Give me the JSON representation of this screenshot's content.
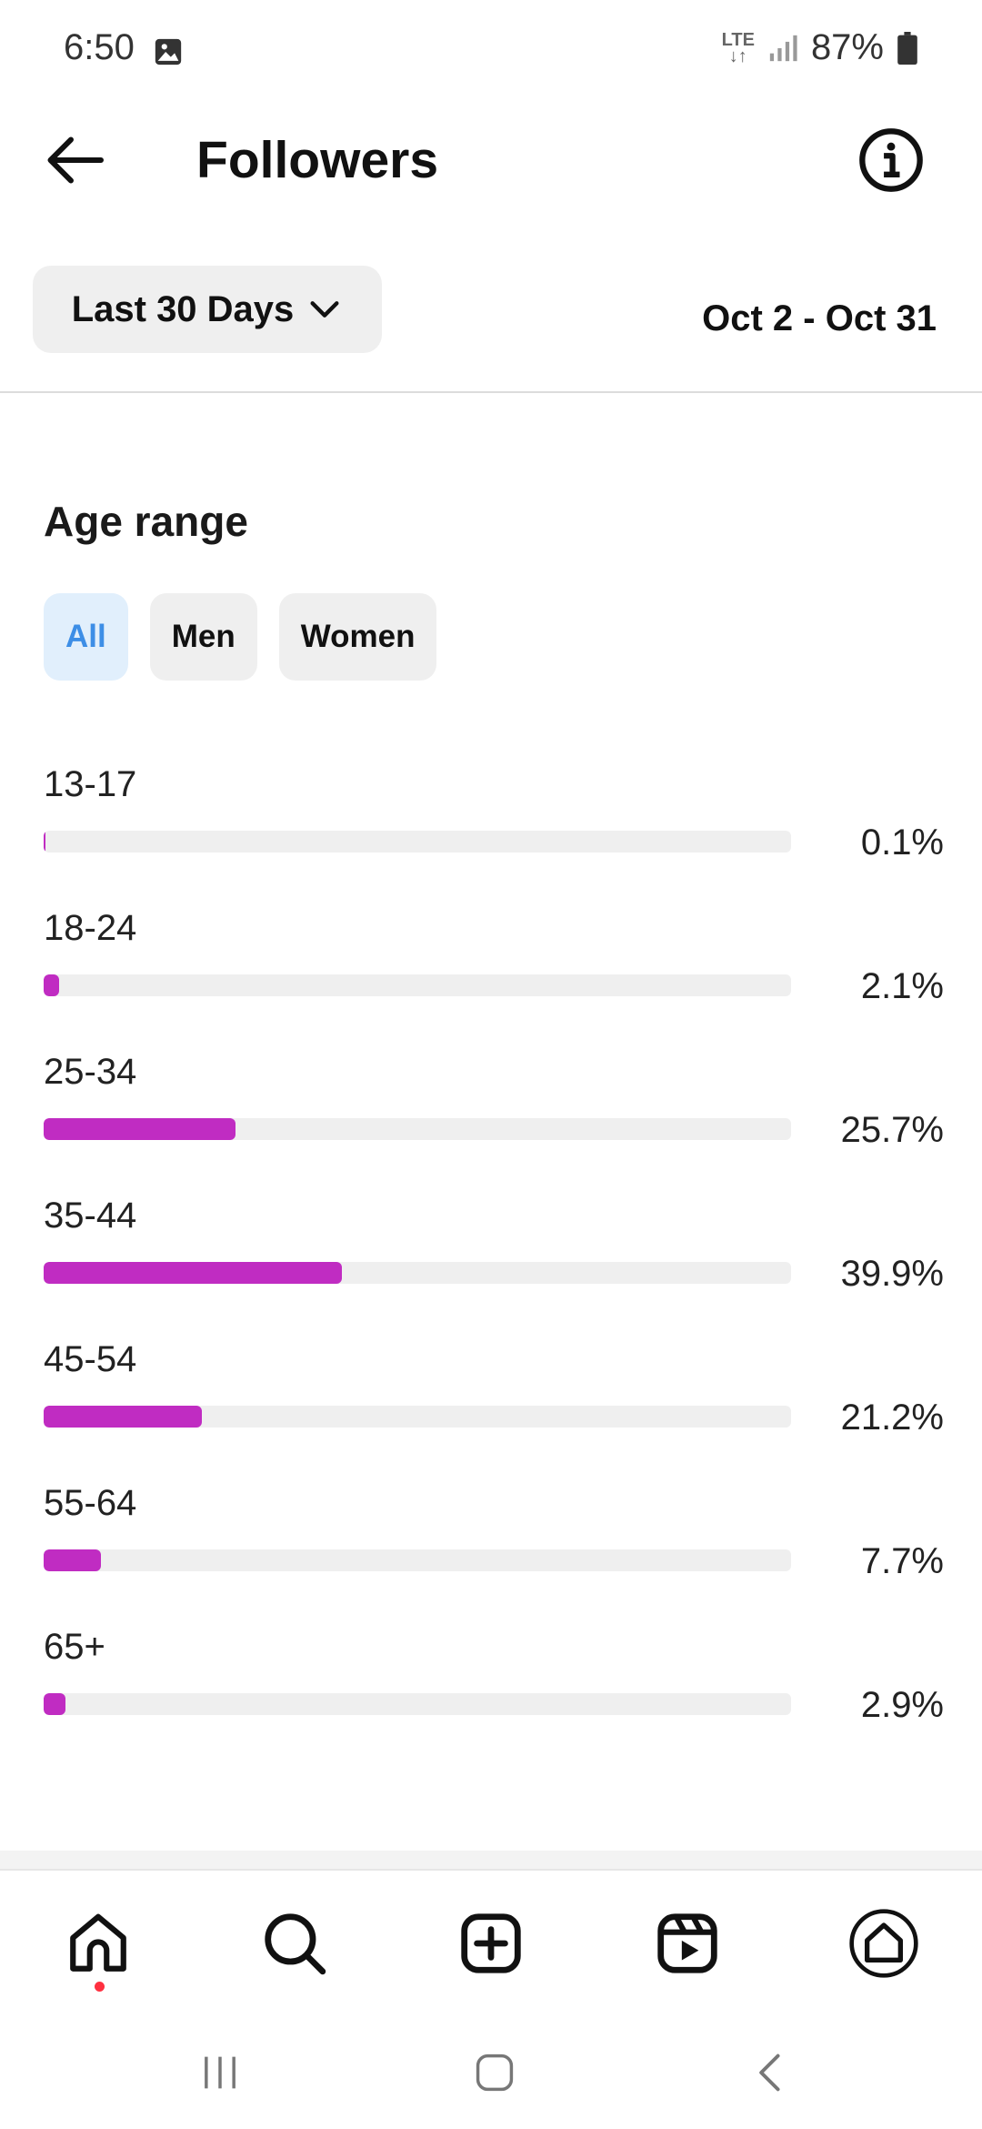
{
  "status_bar": {
    "time": "6:50",
    "network": "LTE",
    "battery": "87%"
  },
  "header": {
    "title": "Followers",
    "back_icon": "arrow-left-icon",
    "info_icon": "info-circle-icon"
  },
  "filter": {
    "range_label": "Last 30 Days",
    "date_range": "Oct 2 - Oct 31"
  },
  "age_section": {
    "title": "Age range",
    "chips": [
      {
        "label": "All",
        "active": true
      },
      {
        "label": "Men",
        "active": false
      },
      {
        "label": "Women",
        "active": false
      }
    ]
  },
  "chart_data": {
    "type": "bar",
    "categories": [
      "13-17",
      "18-24",
      "25-34",
      "35-44",
      "45-54",
      "55-64",
      "65+"
    ],
    "values": [
      0.1,
      2.1,
      25.7,
      39.9,
      21.2,
      7.7,
      2.9
    ],
    "value_labels": [
      "0.1%",
      "2.1%",
      "25.7%",
      "39.9%",
      "21.2%",
      "7.7%",
      "2.9%"
    ],
    "orientation": "horizontal",
    "xlim": [
      0,
      100
    ],
    "bar_color": "#c02cc2",
    "track_color": "#efefef"
  },
  "bottom_nav": {
    "items": [
      "home-icon",
      "search-icon",
      "create-icon",
      "reels-icon",
      "dashboard-icon"
    ]
  },
  "system_nav": {
    "items": [
      "recents-icon",
      "home-button-icon",
      "back-icon"
    ]
  }
}
